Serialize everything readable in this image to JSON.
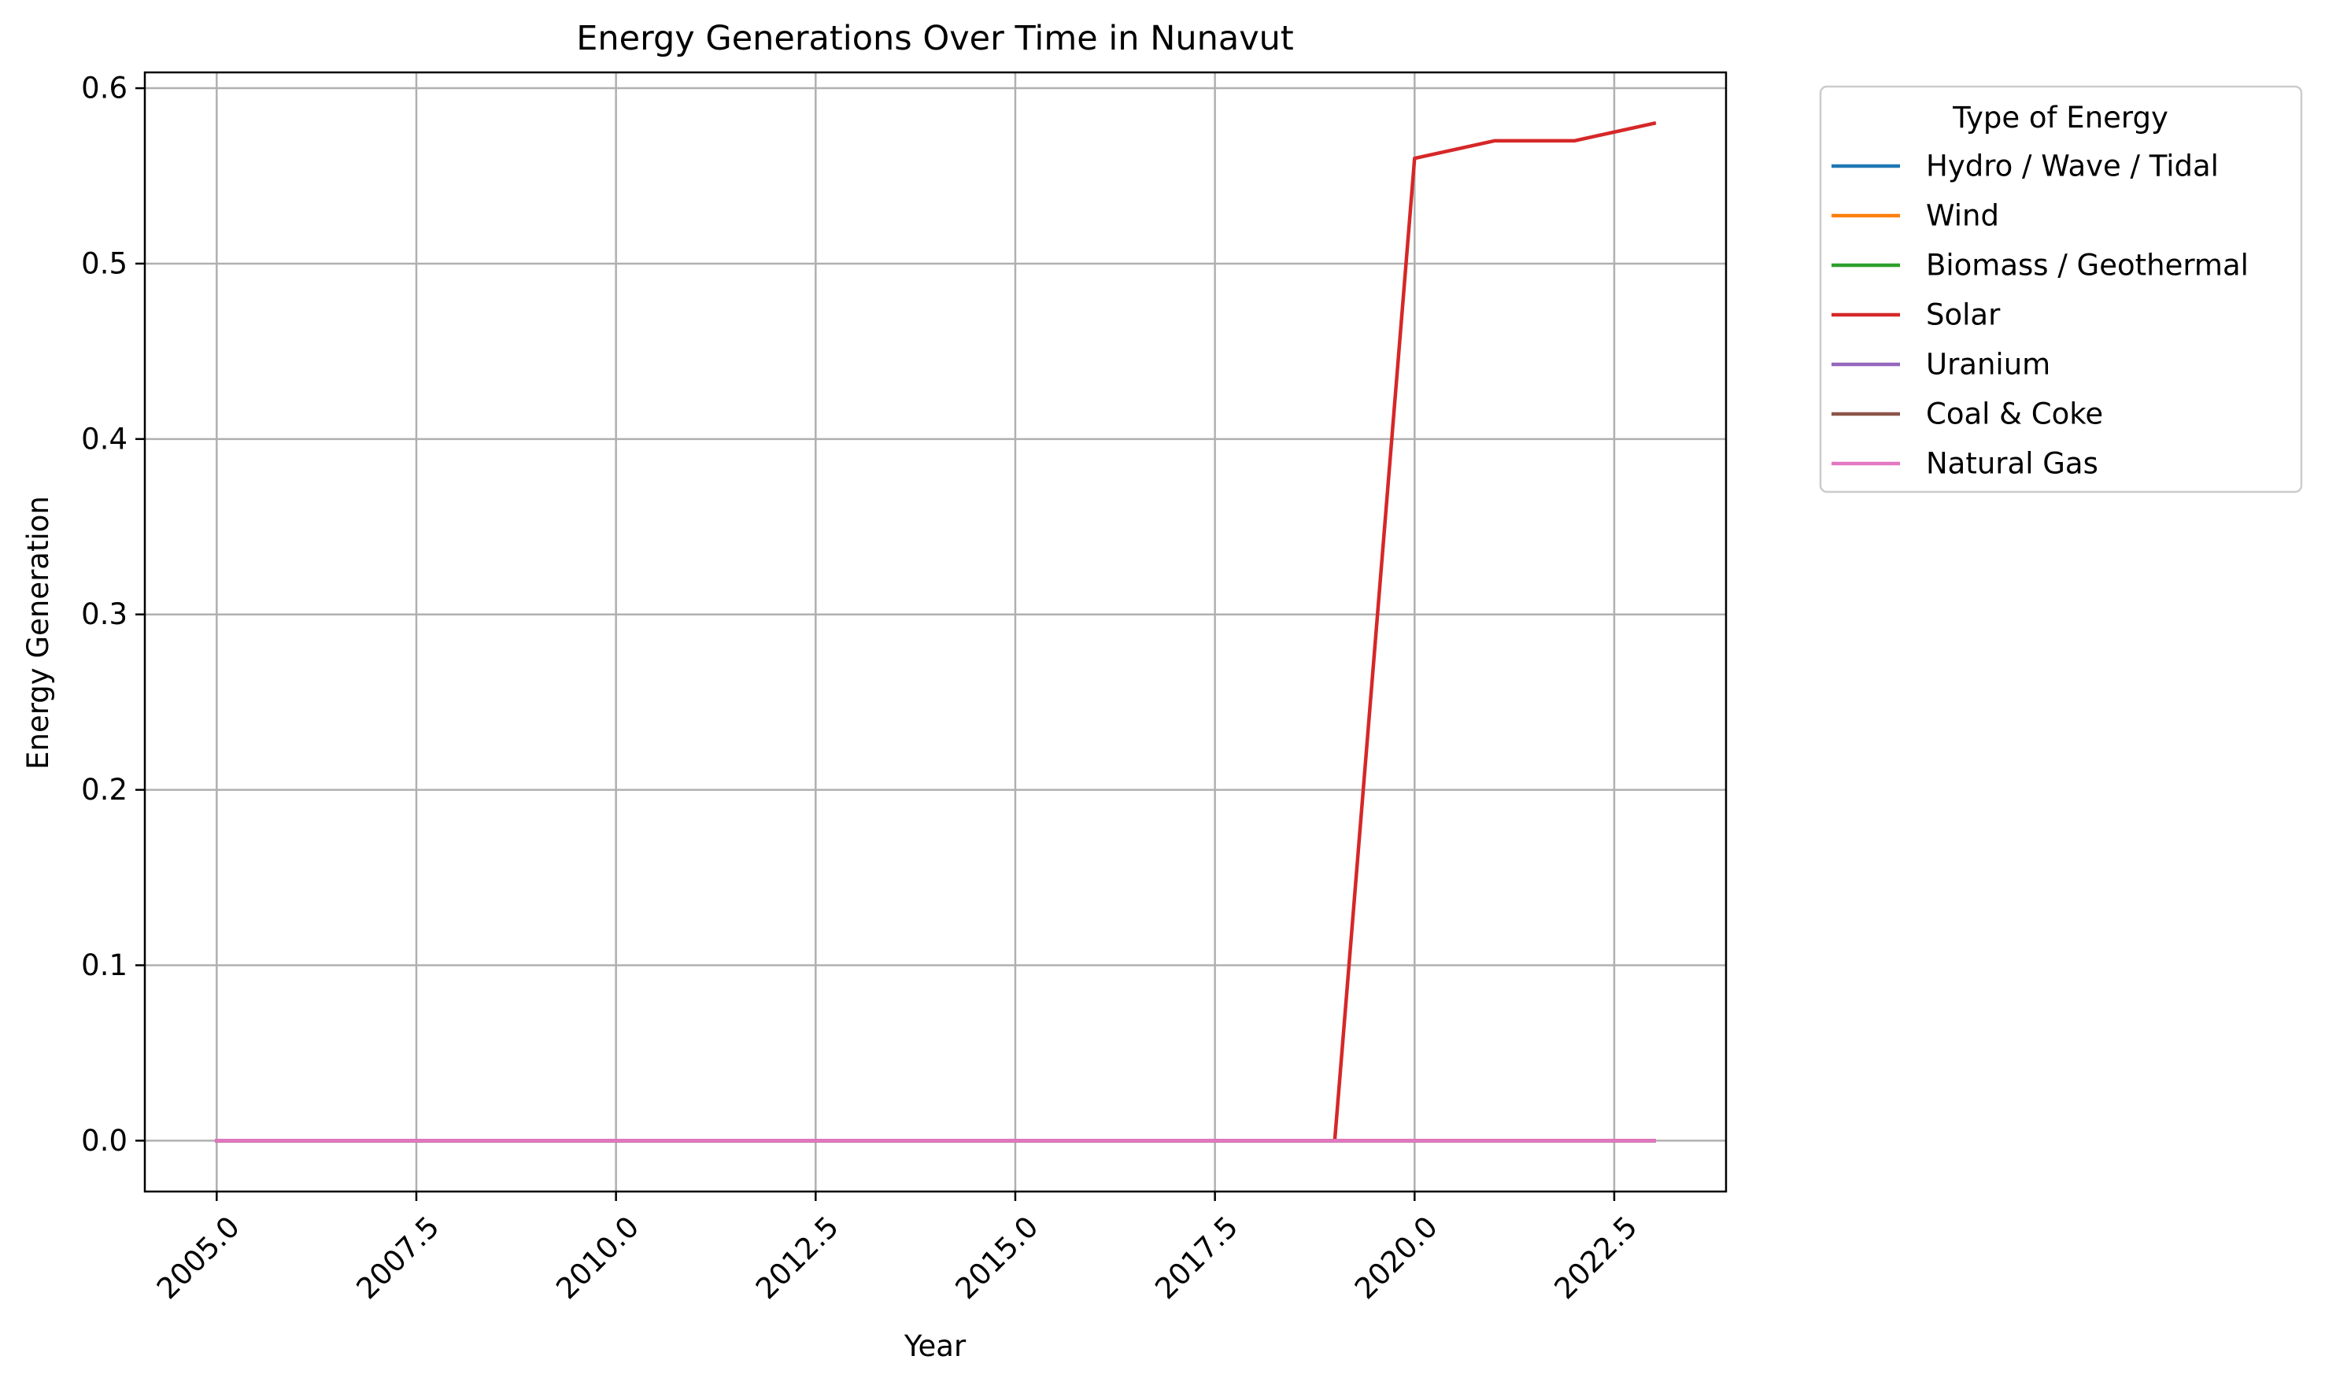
{
  "chart_data": {
    "type": "line",
    "title": "Energy Generations Over Time in Nunavut",
    "xlabel": "Year",
    "ylabel": "Energy Generation",
    "xlim": [
      2004.1,
      2023.9
    ],
    "ylim": [
      -0.029,
      0.609
    ],
    "xticks": [
      2005.0,
      2007.5,
      2010.0,
      2012.5,
      2015.0,
      2017.5,
      2020.0,
      2022.5
    ],
    "xtick_labels": [
      "2005.0",
      "2007.5",
      "2010.0",
      "2012.5",
      "2015.0",
      "2017.5",
      "2020.0",
      "2022.5"
    ],
    "yticks": [
      0.0,
      0.1,
      0.2,
      0.3,
      0.4,
      0.5,
      0.6
    ],
    "ytick_labels": [
      "0.0",
      "0.1",
      "0.2",
      "0.3",
      "0.4",
      "0.5",
      "0.6"
    ],
    "grid": true,
    "legend_title": "Type of Energy",
    "legend_position": "outside upper-right",
    "x": [
      2005,
      2006,
      2007,
      2008,
      2009,
      2010,
      2011,
      2012,
      2013,
      2014,
      2015,
      2016,
      2017,
      2018,
      2019,
      2020,
      2021,
      2022,
      2023
    ],
    "series": [
      {
        "name": "Hydro / Wave / Tidal",
        "color": "#1f77b4",
        "values": [
          0,
          0,
          0,
          0,
          0,
          0,
          0,
          0,
          0,
          0,
          0,
          0,
          0,
          0,
          0,
          0,
          0,
          0,
          0
        ]
      },
      {
        "name": "Wind",
        "color": "#ff7f0e",
        "values": [
          0,
          0,
          0,
          0,
          0,
          0,
          0,
          0,
          0,
          0,
          0,
          0,
          0,
          0,
          0,
          0,
          0,
          0,
          0
        ]
      },
      {
        "name": "Biomass / Geothermal",
        "color": "#2ca02c",
        "values": [
          0,
          0,
          0,
          0,
          0,
          0,
          0,
          0,
          0,
          0,
          0,
          0,
          0,
          0,
          0,
          0,
          0,
          0,
          0
        ]
      },
      {
        "name": "Solar",
        "color": "#d62728",
        "values": [
          0,
          0,
          0,
          0,
          0,
          0,
          0,
          0,
          0,
          0,
          0,
          0,
          0,
          0,
          0,
          0.56,
          0.57,
          0.57,
          0.58
        ]
      },
      {
        "name": "Uranium",
        "color": "#9467bd",
        "values": [
          0,
          0,
          0,
          0,
          0,
          0,
          0,
          0,
          0,
          0,
          0,
          0,
          0,
          0,
          0,
          0,
          0,
          0,
          0
        ]
      },
      {
        "name": "Coal & Coke",
        "color": "#8c564b",
        "values": [
          0,
          0,
          0,
          0,
          0,
          0,
          0,
          0,
          0,
          0,
          0,
          0,
          0,
          0,
          0,
          0,
          0,
          0,
          0
        ]
      },
      {
        "name": "Natural Gas",
        "color": "#e377c2",
        "values": [
          0,
          0,
          0,
          0,
          0,
          0,
          0,
          0,
          0,
          0,
          0,
          0,
          0,
          0,
          0,
          0,
          0,
          0,
          0
        ]
      }
    ]
  }
}
